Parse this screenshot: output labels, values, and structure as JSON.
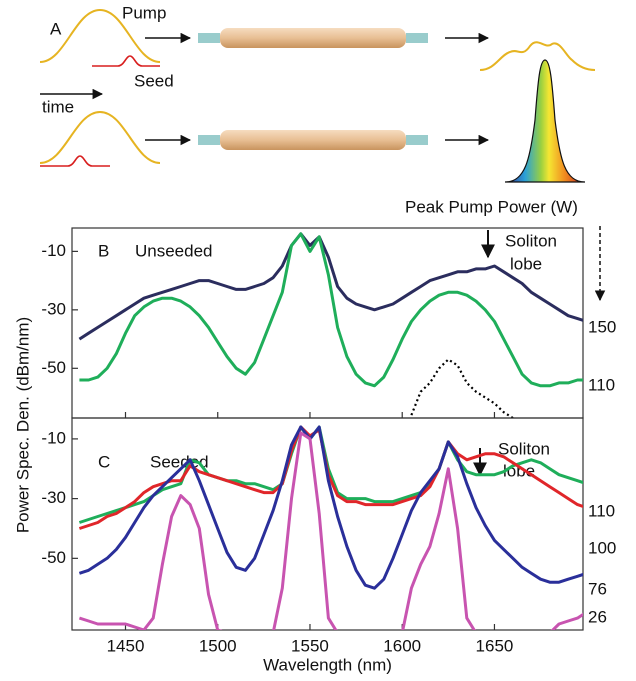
{
  "schematic": {
    "panel": "A",
    "pump": "Pump",
    "seed": "Seed",
    "time": "time"
  },
  "figure": {
    "ylabel": "Power Spec. Den. (dBm/nm)",
    "legend_title": "Peak Pump Power (W)"
  },
  "chart_data": [
    {
      "type": "line",
      "panel": "B",
      "annotation": "Unseeded",
      "lobe_label": [
        "Soliton",
        "lobe"
      ],
      "x": [
        1425,
        1430,
        1435,
        1440,
        1445,
        1450,
        1455,
        1460,
        1465,
        1470,
        1475,
        1480,
        1485,
        1490,
        1495,
        1500,
        1505,
        1510,
        1515,
        1520,
        1525,
        1530,
        1535,
        1540,
        1545,
        1550,
        1555,
        1560,
        1565,
        1570,
        1575,
        1580,
        1585,
        1590,
        1595,
        1600,
        1605,
        1610,
        1615,
        1620,
        1625,
        1630,
        1635,
        1640,
        1645,
        1650,
        1655,
        1660,
        1665,
        1670,
        1675,
        1680,
        1685,
        1690,
        1695,
        1700
      ],
      "xlim": [
        1421,
        1698
      ],
      "ylim": [
        -67,
        -2
      ],
      "yticks": [
        -10,
        -30,
        -50
      ],
      "series": [
        {
          "name": "150",
          "color": "#2b2d5e",
          "values": [
            -40,
            -38,
            -36,
            -34,
            -32,
            -30,
            -28,
            -26,
            -25,
            -24,
            -23,
            -22,
            -21,
            -20,
            -20,
            -21,
            -22,
            -23,
            -23,
            -22,
            -21,
            -19,
            -15,
            -8,
            -4,
            -8,
            -5,
            -12,
            -22,
            -26,
            -28,
            -29,
            -30,
            -29,
            -28,
            -26,
            -24,
            -22,
            -20,
            -19,
            -18,
            -17,
            -17,
            -16,
            -16,
            -15,
            -17,
            -19,
            -21,
            -24,
            -26,
            -28,
            -30,
            -32,
            -33,
            -34
          ]
        },
        {
          "name": "110",
          "color": "#1fae5a",
          "values": [
            -54,
            -54,
            -53,
            -50,
            -45,
            -38,
            -32,
            -29,
            -27,
            -26,
            -26,
            -27,
            -29,
            -32,
            -36,
            -41,
            -46,
            -50,
            -52,
            -48,
            -40,
            -32,
            -24,
            -8,
            -4,
            -10,
            -5,
            -18,
            -36,
            -46,
            -52,
            -55,
            -56,
            -53,
            -47,
            -40,
            -34,
            -30,
            -27,
            -25,
            -24,
            -24,
            -25,
            -27,
            -30,
            -34,
            -40,
            -46,
            -52,
            -55,
            -56,
            -56,
            -55,
            -55,
            -54,
            -54
          ]
        },
        {
          "color": "#000000",
          "dash": "dotted",
          "values": [
            null,
            null,
            null,
            null,
            null,
            null,
            null,
            null,
            null,
            null,
            null,
            null,
            null,
            null,
            null,
            null,
            null,
            null,
            null,
            null,
            null,
            null,
            null,
            null,
            null,
            null,
            null,
            null,
            null,
            null,
            null,
            null,
            null,
            null,
            null,
            null,
            -66,
            -58,
            -55,
            -50,
            -47,
            -49,
            -55,
            -58,
            -60,
            -62,
            -65,
            -67,
            null,
            null,
            null,
            null,
            null,
            null,
            null,
            null
          ]
        }
      ]
    },
    {
      "type": "line",
      "panel": "C",
      "annotation": "Seeded",
      "lobe_label": [
        "Soliton",
        "lobe"
      ],
      "xlabel": "Wavelength (nm)",
      "x": [
        1425,
        1430,
        1435,
        1440,
        1445,
        1450,
        1455,
        1460,
        1465,
        1470,
        1475,
        1480,
        1485,
        1490,
        1495,
        1500,
        1505,
        1510,
        1515,
        1520,
        1525,
        1530,
        1535,
        1540,
        1545,
        1550,
        1555,
        1560,
        1565,
        1570,
        1575,
        1580,
        1585,
        1590,
        1595,
        1600,
        1605,
        1610,
        1615,
        1620,
        1625,
        1630,
        1635,
        1640,
        1645,
        1650,
        1655,
        1660,
        1665,
        1670,
        1675,
        1680,
        1685,
        1690,
        1695,
        1700
      ],
      "xlim": [
        1421,
        1698
      ],
      "ylim": [
        -74,
        -3
      ],
      "yticks": [
        -10,
        -30,
        -50
      ],
      "xticks": [
        1450,
        1500,
        1550,
        1600,
        1650
      ],
      "series": [
        {
          "name": "110",
          "color": "#1fae5a",
          "values": [
            -38,
            -37,
            -36,
            -35,
            -34,
            -33,
            -32,
            -31,
            -29,
            -27,
            -26,
            -25,
            -17,
            -18,
            -22,
            -23,
            -24,
            -24,
            -25,
            -25,
            -26,
            -27,
            -25,
            -15,
            -6,
            -10,
            -6,
            -20,
            -28,
            -30,
            -30,
            -30,
            -31,
            -31,
            -31,
            -30,
            -29,
            -28,
            -25,
            -20,
            -11,
            -17,
            -21,
            -22,
            -22,
            -22,
            -21,
            -19,
            -18,
            -17,
            -18,
            -20,
            -22,
            -23,
            -24,
            -25
          ]
        },
        {
          "name": "100",
          "color": "#e0262a",
          "values": [
            -40,
            -39,
            -38,
            -36,
            -35,
            -33,
            -31,
            -28,
            -26,
            -25,
            -24,
            -24,
            -19,
            -21,
            -22,
            -23,
            -24,
            -25,
            -26,
            -27,
            -28,
            -28,
            -25,
            -14,
            -6,
            -9,
            -7,
            -22,
            -29,
            -31,
            -31,
            -32,
            -32,
            -32,
            -32,
            -31,
            -30,
            -29,
            -26,
            -20,
            -11,
            -15,
            -17,
            -16,
            -15,
            -15,
            -16,
            -18,
            -20,
            -22,
            -24,
            -26,
            -28,
            -30,
            -32,
            -33
          ]
        },
        {
          "name": "76",
          "color": "#2a2f9a",
          "values": [
            -55,
            -54,
            -52,
            -50,
            -47,
            -43,
            -38,
            -33,
            -29,
            -26,
            -23,
            -20,
            -17,
            -24,
            -32,
            -40,
            -48,
            -53,
            -54,
            -50,
            -42,
            -34,
            -24,
            -12,
            -6,
            -10,
            -6,
            -24,
            -36,
            -46,
            -54,
            -59,
            -60,
            -57,
            -50,
            -42,
            -34,
            -28,
            -24,
            -20,
            -11,
            -16,
            -25,
            -33,
            -39,
            -44,
            -47,
            -50,
            -53,
            -55,
            -57,
            -58,
            -58,
            -57,
            -56,
            -55
          ]
        },
        {
          "name": "26",
          "color": "#c854b0",
          "values": [
            -70,
            -71,
            -72,
            -72,
            -72,
            -72,
            -73,
            -74,
            -70,
            -52,
            -36,
            -29,
            -32,
            -40,
            -62,
            -74,
            -75,
            -75,
            -75,
            -75,
            -75,
            -75,
            -60,
            -30,
            -8,
            -10,
            -35,
            -70,
            -75,
            -75,
            -75,
            -75,
            -75,
            -75,
            -75,
            -75,
            -60,
            -52,
            -46,
            -35,
            -20,
            -40,
            -70,
            -75,
            -75,
            -75,
            -75,
            -75,
            -75,
            -75,
            -75,
            -75,
            -72,
            -71,
            -70,
            -68
          ]
        }
      ]
    }
  ]
}
